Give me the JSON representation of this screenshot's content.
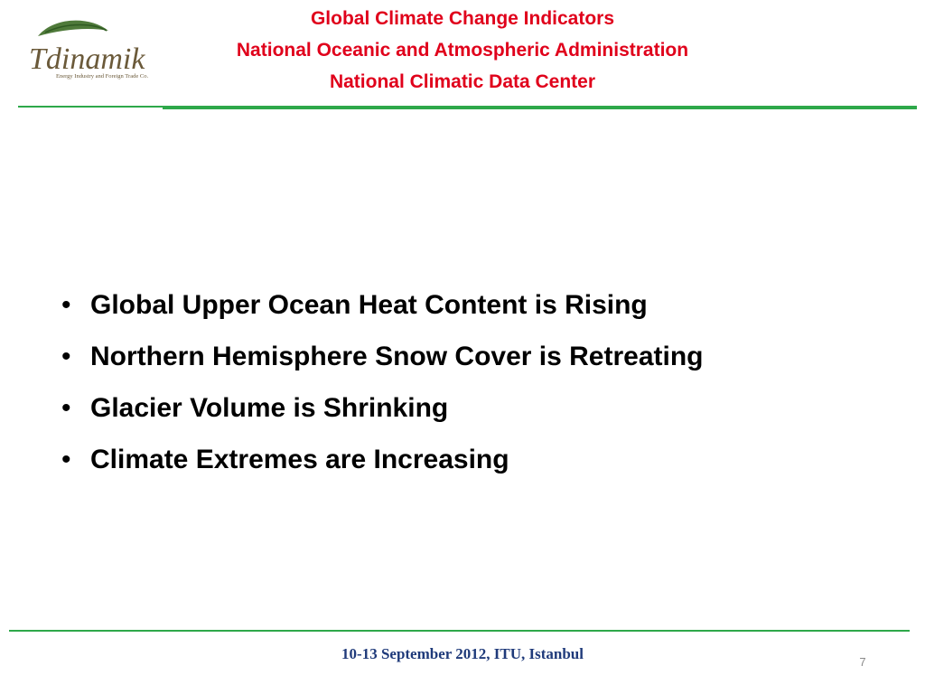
{
  "header": {
    "title": [
      "Global Climate Change Indicators",
      "National Oceanic and Atmospheric Administration",
      "National Climatic Data Center"
    ]
  },
  "logo": {
    "name": "Tdinamik",
    "tagline": "Energy Industry and Foreign Trade Co."
  },
  "bullets": [
    "Global Upper Ocean Heat Content is Rising",
    "Northern Hemisphere Snow Cover is Retreating",
    "Glacier Volume is Shrinking",
    "Climate Extremes are Increasing"
  ],
  "footer": {
    "text": "10-13 September 2012, ITU, Istanbul",
    "page": 7
  }
}
